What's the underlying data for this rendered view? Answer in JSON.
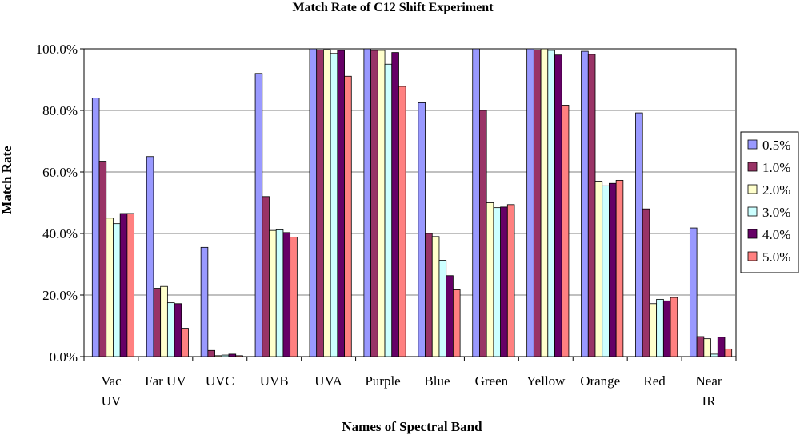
{
  "chart_data": {
    "type": "bar",
    "title": "Match Rate of C12 Shift Experiment",
    "xlabel": "Names of Spectral Band",
    "ylabel": "Match Rate",
    "ylim": [
      0,
      100
    ],
    "y_ticks": [
      "0.0%",
      "20.0%",
      "40.0%",
      "60.0%",
      "80.0%",
      "100.0%"
    ],
    "grid": true,
    "legend_position": "right",
    "categories": [
      [
        "Vac",
        "UV"
      ],
      [
        "Far UV"
      ],
      [
        "UVC"
      ],
      [
        "UVB"
      ],
      [
        "UVA"
      ],
      [
        "Purple"
      ],
      [
        "Blue"
      ],
      [
        "Green"
      ],
      [
        "Yellow"
      ],
      [
        "Orange"
      ],
      [
        "Red"
      ],
      [
        "Near",
        "IR"
      ]
    ],
    "series": [
      {
        "name": "0.5%",
        "color": "#9999ff",
        "values": [
          84,
          65,
          35.5,
          92,
          100,
          100,
          82.5,
          100,
          100,
          99.2,
          79.2,
          41.8
        ]
      },
      {
        "name": "1.0%",
        "color": "#993366",
        "values": [
          63.5,
          22.2,
          2,
          52,
          99.6,
          99.5,
          40,
          80,
          99.6,
          98.2,
          48,
          6.5
        ]
      },
      {
        "name": "2.0%",
        "color": "#ffffcc",
        "values": [
          45,
          22.8,
          0.3,
          41,
          99.7,
          99.5,
          39,
          50,
          100,
          57,
          17.2,
          5.8
        ]
      },
      {
        "name": "3.0%",
        "color": "#ccffff",
        "values": [
          43.2,
          17.5,
          0.5,
          41.2,
          98.5,
          95,
          31.3,
          48.4,
          99.5,
          55.5,
          18.6,
          0.8
        ]
      },
      {
        "name": "4.0%",
        "color": "#660066",
        "values": [
          46.5,
          17.2,
          0.8,
          40.3,
          99.5,
          98.8,
          26.3,
          48.6,
          98,
          56.3,
          18.1,
          6.3
        ]
      },
      {
        "name": "5.0%",
        "color": "#ff8080",
        "values": [
          46.5,
          9.2,
          0.3,
          38.8,
          91.1,
          87.8,
          21.7,
          49.4,
          81.7,
          57.3,
          19.2,
          2.5
        ]
      }
    ]
  }
}
